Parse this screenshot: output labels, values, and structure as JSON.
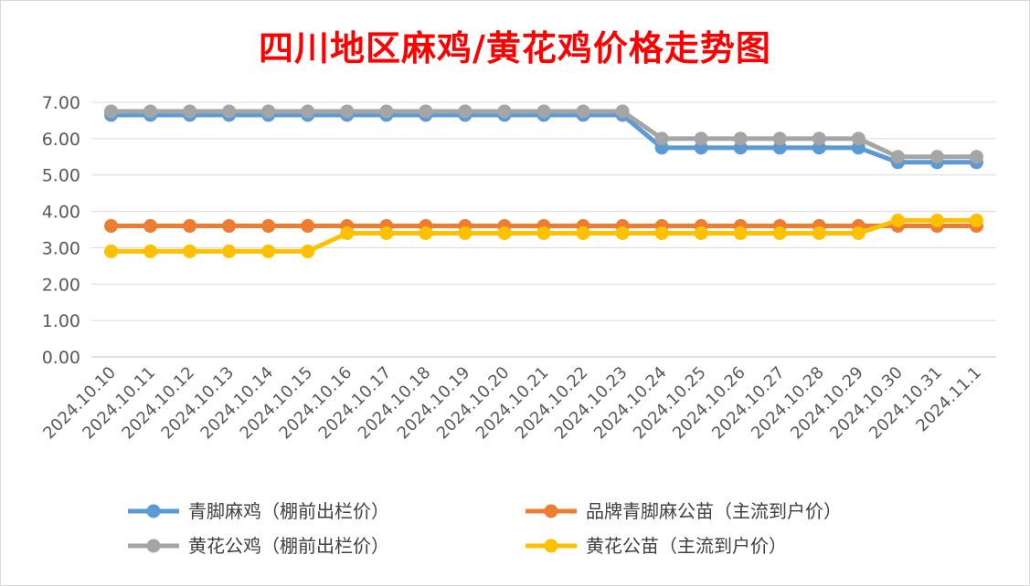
{
  "chart_data": {
    "type": "line",
    "title": "四川地区麻鸡/黄花鸡价格走势图",
    "xlabel": "",
    "ylabel": "",
    "ylim": [
      0,
      7
    ],
    "yticks": [
      "7.00",
      "6.00",
      "5.00",
      "4.00",
      "3.00",
      "2.00",
      "1.00",
      "0.00"
    ],
    "grid": true,
    "legend_position": "bottom",
    "categories": [
      "2024.10.10",
      "2024.10.11",
      "2024.10.12",
      "2024.10.13",
      "2024.10.14",
      "2024.10.15",
      "2024.10.16",
      "2024.10.17",
      "2024.10.18",
      "2024.10.19",
      "2024.10.20",
      "2024.10.21",
      "2024.10.22",
      "2024.10.23",
      "2024.10.24",
      "2024.10.25",
      "2024.10.26",
      "2024.10.27",
      "2024.10.28",
      "2024.10.29",
      "2024.10.30",
      "2024.10.31",
      "2024.11.1"
    ],
    "series": [
      {
        "name": "青脚麻鸡（棚前出栏价）",
        "color": "#5b9bd5",
        "values": [
          6.65,
          6.65,
          6.65,
          6.65,
          6.65,
          6.65,
          6.65,
          6.65,
          6.65,
          6.65,
          6.65,
          6.65,
          6.65,
          6.65,
          5.75,
          5.75,
          5.75,
          5.75,
          5.75,
          5.75,
          5.35,
          5.35,
          5.35
        ]
      },
      {
        "name": "品牌青脚麻公苗（主流到户价）",
        "color": "#ed7d31",
        "values": [
          3.6,
          3.6,
          3.6,
          3.6,
          3.6,
          3.6,
          3.6,
          3.6,
          3.6,
          3.6,
          3.6,
          3.6,
          3.6,
          3.6,
          3.6,
          3.6,
          3.6,
          3.6,
          3.6,
          3.6,
          3.6,
          3.6,
          3.6
        ]
      },
      {
        "name": "黄花公鸡（棚前出栏价）",
        "color": "#a5a5a5",
        "values": [
          6.75,
          6.75,
          6.75,
          6.75,
          6.75,
          6.75,
          6.75,
          6.75,
          6.75,
          6.75,
          6.75,
          6.75,
          6.75,
          6.75,
          6.0,
          6.0,
          6.0,
          6.0,
          6.0,
          6.0,
          5.5,
          5.5,
          5.5
        ]
      },
      {
        "name": "黄花公苗（主流到户价）",
        "color": "#ffc000",
        "values": [
          2.9,
          2.9,
          2.9,
          2.9,
          2.9,
          2.9,
          3.4,
          3.4,
          3.4,
          3.4,
          3.4,
          3.4,
          3.4,
          3.4,
          3.4,
          3.4,
          3.4,
          3.4,
          3.4,
          3.4,
          3.75,
          3.75,
          3.75
        ]
      }
    ]
  }
}
